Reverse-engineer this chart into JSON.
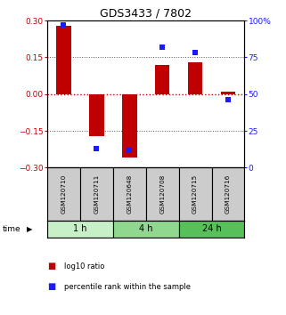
{
  "title": "GDS3433 / 7802",
  "samples": [
    "GSM120710",
    "GSM120711",
    "GSM120648",
    "GSM120708",
    "GSM120715",
    "GSM120716"
  ],
  "log10_ratio": [
    0.28,
    -0.17,
    -0.26,
    0.12,
    0.13,
    0.01
  ],
  "percentile_rank": [
    97,
    13,
    12,
    82,
    78,
    46
  ],
  "time_groups": [
    {
      "label": "1 h",
      "start": 0,
      "end": 2,
      "color": "#c8f0c8"
    },
    {
      "label": "4 h",
      "start": 2,
      "end": 4,
      "color": "#90d890"
    },
    {
      "label": "24 h",
      "start": 4,
      "end": 6,
      "color": "#58c058"
    }
  ],
  "ylim_left": [
    -0.3,
    0.3
  ],
  "ylim_right": [
    0,
    100
  ],
  "yticks_left": [
    -0.3,
    -0.15,
    0,
    0.15,
    0.3
  ],
  "yticks_right": [
    0,
    25,
    50,
    75,
    100
  ],
  "ytick_labels_right": [
    "0",
    "25",
    "50",
    "75",
    "100%"
  ],
  "bar_color_red": "#c00000",
  "marker_color_blue": "#1a1aff",
  "hline_color": "#cc0000",
  "grid_color": "#555555",
  "sample_box_color": "#cccccc",
  "legend_red_label": "log10 ratio",
  "legend_blue_label": "percentile rank within the sample",
  "time_label": "time",
  "bar_width": 0.45
}
